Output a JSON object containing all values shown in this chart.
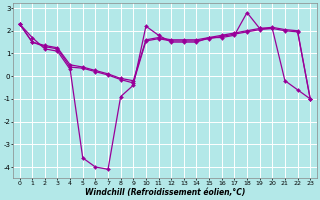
{
  "xlabel": "Windchill (Refroidissement éolien,°C)",
  "bg_color": "#b3e8e8",
  "line_color": "#990099",
  "grid_color": "#ffffff",
  "xlim": [
    -0.5,
    23.5
  ],
  "ylim": [
    -4.5,
    3.2
  ],
  "xticks": [
    0,
    1,
    2,
    3,
    4,
    5,
    6,
    7,
    8,
    9,
    10,
    11,
    12,
    13,
    14,
    15,
    16,
    17,
    18,
    19,
    20,
    21,
    22,
    23
  ],
  "yticks": [
    -4,
    -3,
    -2,
    -1,
    0,
    1,
    2,
    3
  ],
  "series1_y": [
    2.3,
    1.7,
    1.2,
    1.1,
    0.3,
    -3.6,
    -4.0,
    -4.1,
    -0.9,
    -0.4,
    2.2,
    1.8,
    1.5,
    1.5,
    1.5,
    1.7,
    1.7,
    1.8,
    2.8,
    2.1,
    2.1,
    -0.2,
    -0.6,
    -1.0
  ],
  "series2_y": [
    2.3,
    1.5,
    1.3,
    1.2,
    0.4,
    0.35,
    0.2,
    0.05,
    -0.15,
    -0.3,
    1.55,
    1.65,
    1.55,
    1.55,
    1.55,
    1.65,
    1.75,
    1.85,
    1.95,
    2.05,
    2.1,
    2.0,
    1.95,
    -1.0
  ],
  "series3_y": [
    2.3,
    1.5,
    1.35,
    1.25,
    0.5,
    0.4,
    0.25,
    0.1,
    -0.1,
    -0.2,
    1.6,
    1.7,
    1.6,
    1.6,
    1.6,
    1.7,
    1.8,
    1.9,
    2.0,
    2.1,
    2.15,
    2.05,
    2.0,
    -1.0
  ]
}
